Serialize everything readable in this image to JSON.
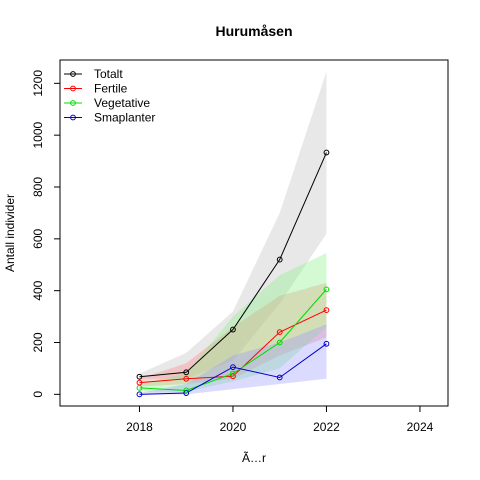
{
  "chart_data": {
    "type": "line",
    "title": "Hurumåsen",
    "xlabel": "Ã…r",
    "ylabel": "Antall individer",
    "xlim": [
      2016.3,
      2024.6
    ],
    "ylim": [
      -45,
      1290
    ],
    "x_ticks": [
      2018,
      2020,
      2022,
      2024
    ],
    "x_tick_labels": [
      "2018",
      "2020",
      "2022",
      "2024"
    ],
    "y_ticks": [
      0,
      200,
      400,
      600,
      800,
      1000,
      1200
    ],
    "y_tick_labels": [
      "0",
      "200",
      "400",
      "600",
      "800",
      "1000",
      "1200"
    ],
    "grid": false,
    "legend_position": "top-left",
    "x": [
      2018,
      2019,
      2020,
      2021,
      2022
    ],
    "series": [
      {
        "name": "Totalt",
        "color": "#000000",
        "band_color": "#bebebe",
        "values": [
          68,
          85,
          250,
          520,
          933
        ],
        "band_upper": [
          80,
          160,
          320,
          700,
          1245
        ],
        "band_lower": [
          60,
          60,
          130,
          350,
          620
        ]
      },
      {
        "name": "Fertile",
        "color": "#ff0000",
        "band_color": "#ff8080",
        "values": [
          45,
          60,
          70,
          240,
          325
        ],
        "band_upper": [
          60,
          120,
          260,
          380,
          430
        ],
        "band_lower": [
          30,
          40,
          60,
          150,
          220
        ]
      },
      {
        "name": "Vegetative",
        "color": "#00dd00",
        "band_color": "#80f080",
        "values": [
          25,
          15,
          80,
          200,
          405
        ],
        "band_upper": [
          40,
          80,
          300,
          460,
          545
        ],
        "band_lower": [
          10,
          10,
          50,
          100,
          260
        ]
      },
      {
        "name": "Smaplanter",
        "color": "#0000cc",
        "band_color": "#9999ff",
        "values": [
          0,
          5,
          105,
          65,
          195
        ],
        "band_upper": [
          5,
          40,
          150,
          200,
          270
        ],
        "band_lower": [
          0,
          0,
          20,
          40,
          60
        ]
      }
    ]
  }
}
